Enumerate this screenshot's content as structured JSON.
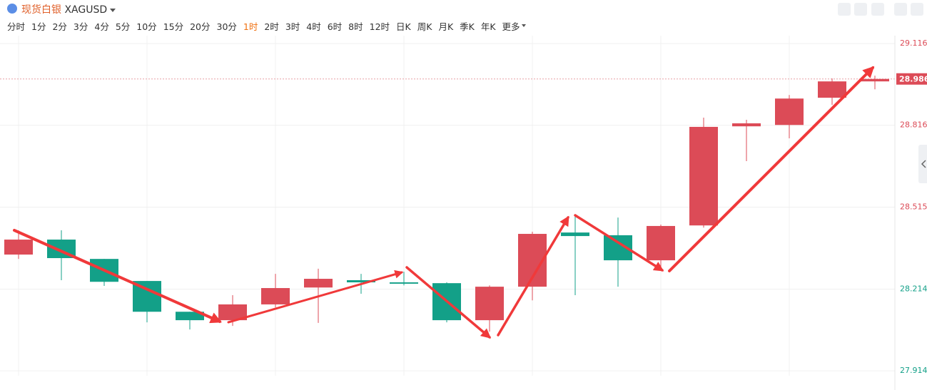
{
  "toolbar": {
    "symbol": "现货白银",
    "code": "XAGUSD",
    "timeframes": [
      "分时",
      "1分",
      "2分",
      "3分",
      "4分",
      "5分",
      "10分",
      "15分",
      "20分",
      "30分",
      "1时",
      "2时",
      "3时",
      "4时",
      "6时",
      "8时",
      "12时",
      "日K",
      "周K",
      "月K",
      "季K",
      "年K",
      "更多"
    ],
    "active": 10
  },
  "chart_data": {
    "type": "candlestick",
    "open": [
      28.341,
      28.396,
      28.325,
      28.244,
      28.131,
      28.1,
      28.158,
      28.22,
      28.247,
      28.239,
      28.236,
      28.1,
      28.223,
      28.422,
      28.412,
      28.32,
      28.448,
      28.812,
      28.817,
      28.917,
      28.977
    ],
    "high": [
      28.43,
      28.43,
      28.325,
      28.244,
      28.131,
      28.192,
      28.27,
      28.289,
      28.27,
      28.278,
      28.239,
      28.228,
      28.425,
      28.48,
      28.477,
      28.451,
      28.844,
      28.836,
      28.927,
      28.988,
      28.998
    ],
    "low": [
      28.325,
      28.247,
      28.226,
      28.092,
      28.066,
      28.079,
      28.147,
      28.09,
      28.197,
      28.228,
      28.092,
      28.058,
      28.173,
      28.192,
      28.223,
      28.281,
      28.44,
      28.684,
      28.768,
      28.891,
      28.948
    ],
    "close": [
      28.396,
      28.328,
      28.241,
      28.131,
      28.1,
      28.158,
      28.218,
      28.252,
      28.239,
      28.234,
      28.1,
      28.223,
      28.417,
      28.409,
      28.32,
      28.446,
      28.81,
      28.823,
      28.914,
      28.977,
      28.986
    ],
    "up_color": "#dc4b57",
    "down_color": "#13a088",
    "ylim": [
      27.896,
      29.145
    ],
    "yticks": [
      29.116,
      28.816,
      28.515,
      28.214,
      27.914
    ],
    "ytick_colors": [
      "#dc4b57",
      "#dc4b57",
      "#dc4b57",
      "#13a088",
      "#13a088"
    ],
    "current_price": 28.986,
    "grid": true
  }
}
